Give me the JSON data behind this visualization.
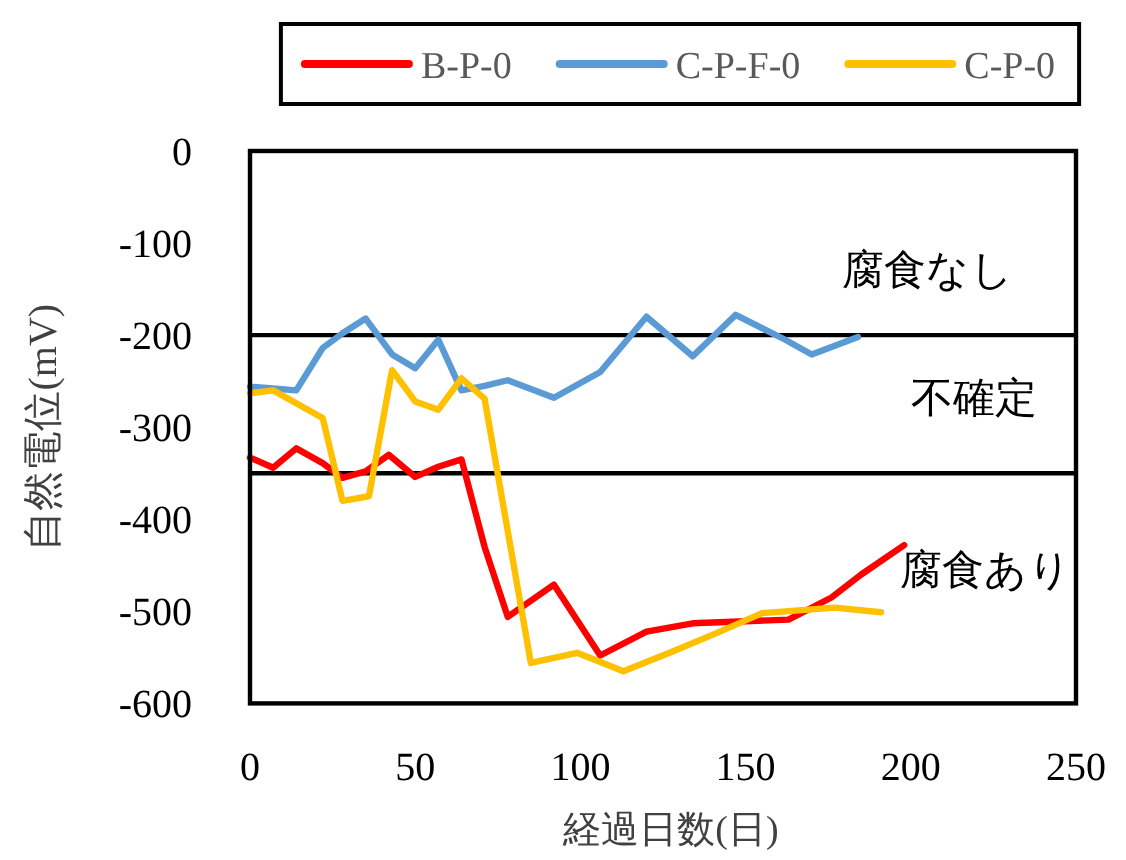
{
  "chart_data": {
    "type": "line",
    "xlabel": "経過日数(日)",
    "ylabel": "自然電位(mV)",
    "xlim": [
      0,
      250
    ],
    "xticks": [
      0,
      50,
      100,
      150,
      200,
      250
    ],
    "ylim": [
      -600,
      0
    ],
    "yticks": [
      0,
      -100,
      -200,
      -300,
      -400,
      -500,
      -600
    ],
    "grid": false,
    "legend": "top",
    "line_style": "solid",
    "ref_lines": [
      {
        "axis": "y",
        "value": -200,
        "color": "#000000"
      },
      {
        "axis": "y",
        "value": -350,
        "color": "#000000"
      }
    ],
    "annotations": [
      "腐食なし",
      "不確定",
      "腐食あり"
    ],
    "series": [
      {
        "name": "B-P-0",
        "color": "#ff0000",
        "x": [
          0,
          7,
          14,
          22,
          28,
          35,
          42,
          50,
          57,
          64,
          71,
          78,
          92,
          106,
          120,
          134,
          148,
          163,
          176,
          185,
          198
        ],
        "values": [
          -333,
          -344,
          -323,
          -339,
          -355,
          -348,
          -330,
          -354,
          -343,
          -335,
          -430,
          -506,
          -471,
          -548,
          -522,
          -513,
          -511,
          -509,
          -485,
          -460,
          -428
        ]
      },
      {
        "name": "C-P-F-0",
        "color": "#5b9bd5",
        "x": [
          0,
          7,
          14,
          22,
          28,
          35,
          43,
          50,
          57,
          64,
          71,
          78,
          92,
          106,
          120,
          134,
          147,
          162,
          170,
          184
        ],
        "values": [
          -256,
          -258,
          -260,
          -214,
          -198,
          -182,
          -221,
          -236,
          -205,
          -260,
          -255,
          -249,
          -268,
          -240,
          -180,
          -223,
          -178,
          -205,
          -221,
          -202
        ]
      },
      {
        "name": "C-P-0",
        "color": "#ffc000",
        "x": [
          0,
          7,
          22,
          28,
          36,
          43,
          50,
          57,
          64,
          71,
          85,
          99,
          113,
          127,
          141,
          155,
          177,
          191
        ],
        "values": [
          -263,
          -260,
          -290,
          -380,
          -375,
          -238,
          -272,
          -281,
          -247,
          -269,
          -556,
          -545,
          -565,
          -545,
          -524,
          -502,
          -496,
          -501
        ]
      }
    ]
  }
}
